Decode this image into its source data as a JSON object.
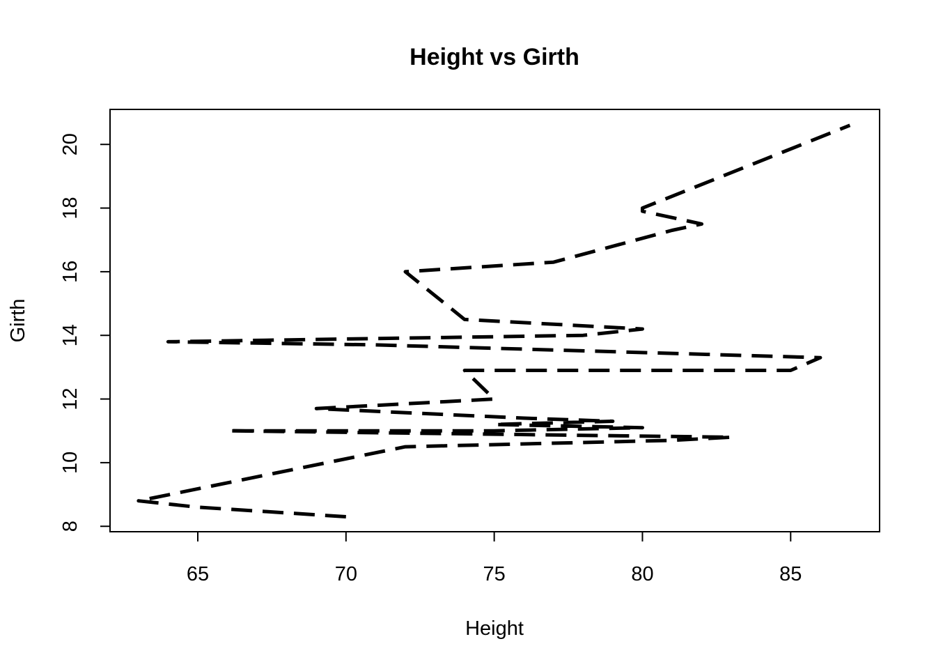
{
  "chart_data": {
    "type": "line",
    "title": "Height vs Girth",
    "xlabel": "Height",
    "ylabel": "Girth",
    "xlim": [
      62.04,
      88.0
    ],
    "ylim": [
      7.83,
      21.1
    ],
    "xticks": [
      65,
      70,
      75,
      80,
      85
    ],
    "yticks": [
      8,
      10,
      12,
      14,
      16,
      18,
      20
    ],
    "grid": false,
    "line_style": "dashed",
    "series": [
      {
        "x": [
          70,
          65,
          63,
          72,
          81,
          83,
          66,
          75,
          80,
          75,
          79,
          76,
          76,
          69,
          75,
          74,
          85,
          86,
          71,
          64,
          78,
          80,
          74,
          72,
          77,
          81,
          82,
          80,
          80,
          80,
          87
        ],
        "y": [
          8.3,
          8.6,
          8.8,
          10.5,
          10.7,
          10.8,
          11.0,
          11.0,
          11.1,
          11.2,
          11.3,
          11.4,
          11.4,
          11.7,
          12.0,
          12.9,
          12.9,
          13.3,
          13.7,
          13.8,
          14.0,
          14.2,
          14.5,
          16.0,
          16.3,
          17.3,
          17.5,
          17.9,
          18.0,
          18.0,
          20.6
        ]
      }
    ]
  }
}
